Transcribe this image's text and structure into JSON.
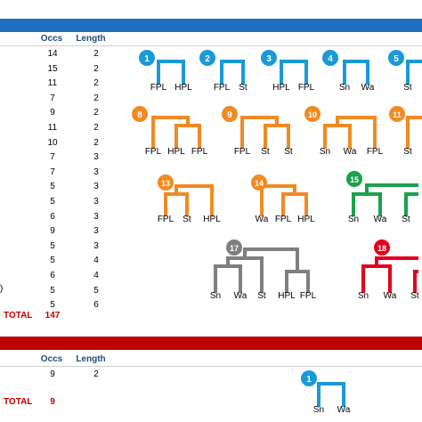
{
  "table1": {
    "headers": {
      "occs": "Occs",
      "length": "Length"
    },
    "rows": [
      {
        "occs": "14",
        "length": "2"
      },
      {
        "occs": "15",
        "length": "2"
      },
      {
        "occs": "11",
        "length": "2"
      },
      {
        "occs": "7",
        "length": "2"
      },
      {
        "occs": "9",
        "length": "2"
      },
      {
        "occs": "11",
        "length": "2"
      },
      {
        "occs": "10",
        "length": "2"
      },
      {
        "occs": "7",
        "length": "3"
      },
      {
        "occs": "7",
        "length": "3"
      },
      {
        "occs": "5",
        "length": "3"
      },
      {
        "occs": "5",
        "length": "3"
      },
      {
        "occs": "6",
        "length": "3"
      },
      {
        "occs": "9",
        "length": "3"
      },
      {
        "occs": "5",
        "length": "3"
      },
      {
        "occs": "5",
        "length": "4"
      },
      {
        "occs": "6",
        "length": "4"
      },
      {
        "occs": "5",
        "length": "5"
      },
      {
        "occs": "5",
        "length": "6"
      }
    ],
    "row_note": ")",
    "total_label": "TOTAL",
    "total_value": "147"
  },
  "table2": {
    "headers": {
      "occs": "Occs",
      "length": "Length"
    },
    "rows": [
      {
        "occs": "9",
        "length": "2"
      }
    ],
    "total_label": "TOTAL",
    "total_value": "9"
  },
  "colors": {
    "blue": "#1a9ad6",
    "orange": "#f08a24",
    "green": "#1aa24a",
    "gray": "#7f7f7f",
    "red": "#e3001b",
    "header_blue": "#1f6fc1",
    "header_red": "#c00000"
  },
  "dendrograms": [
    {
      "badge": "1",
      "color": "blue",
      "leaves": [
        "FPL",
        "HPL"
      ]
    },
    {
      "badge": "2",
      "color": "blue",
      "leaves": [
        "FPL",
        "St"
      ]
    },
    {
      "badge": "3",
      "color": "blue",
      "leaves": [
        "HPL",
        "FPL"
      ]
    },
    {
      "badge": "4",
      "color": "blue",
      "leaves": [
        "Sn",
        "Wa"
      ]
    },
    {
      "badge": "5",
      "color": "blue",
      "leaves": [
        "St"
      ]
    },
    {
      "badge": "8",
      "color": "orange",
      "leaves": [
        "FPL",
        "HPL",
        "FPL"
      ]
    },
    {
      "badge": "9",
      "color": "orange",
      "leaves": [
        "FPL",
        "St",
        "St"
      ]
    },
    {
      "badge": "10",
      "color": "orange",
      "leaves": [
        "Sn",
        "Wa",
        "FPL"
      ]
    },
    {
      "badge": "11",
      "color": "orange",
      "leaves": [
        "St"
      ]
    },
    {
      "badge": "13",
      "color": "orange",
      "leaves": [
        "FPL",
        "St",
        "HPL"
      ]
    },
    {
      "badge": "14",
      "color": "orange",
      "leaves": [
        "Wa",
        "FPL",
        "HPL"
      ]
    },
    {
      "badge": "15",
      "color": "green",
      "leaves": [
        "Sn",
        "Wa",
        "St"
      ]
    },
    {
      "badge": "17",
      "color": "gray",
      "leaves": [
        "Sn",
        "Wa",
        "St",
        "HPL",
        "FPL"
      ]
    },
    {
      "badge": "18",
      "color": "red",
      "leaves": [
        "Sn",
        "Wa",
        "St"
      ]
    },
    {
      "badge": "1",
      "color": "blue",
      "leaves": [
        "Sn",
        "Wa"
      ]
    }
  ]
}
